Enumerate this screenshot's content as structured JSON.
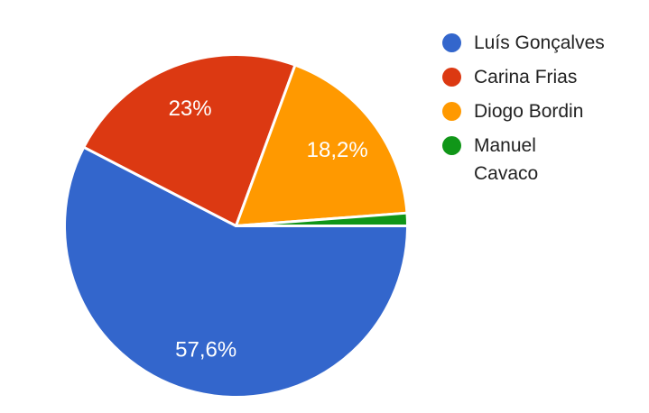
{
  "chart_data": {
    "type": "pie",
    "labels": [
      "Luís Gonçalves",
      "Carina Frias",
      "Diogo Bordin",
      "Manuel Cavaco"
    ],
    "values": [
      57.6,
      23,
      18.2,
      1.2
    ],
    "slice_display_labels": [
      "57,6%",
      "23%",
      "18,2%",
      ""
    ],
    "colors": [
      "#3366CC",
      "#DC3912",
      "#FF9900",
      "#109618"
    ],
    "slice_border_color": "#ffffff",
    "slice_label_color": "#ffffff",
    "start_angle_deg_clockwise_from_top": 90,
    "direction": "clockwise",
    "legend_position": "right",
    "decimal_separator": ",",
    "title": ""
  },
  "legend": {
    "text_color": "#222222",
    "items": [
      {
        "label": "Luís Gonçalves",
        "display": "Luís Gonçalves",
        "color": "#3366CC"
      },
      {
        "label": "Carina Frias",
        "display": "Carina Frias",
        "color": "#DC3912"
      },
      {
        "label": "Diogo Bordin",
        "display": "Diogo Bordin",
        "color": "#FF9900"
      },
      {
        "label": "Manuel Cavaco",
        "display": "Manuel\nCavaco",
        "color": "#109618"
      }
    ]
  }
}
